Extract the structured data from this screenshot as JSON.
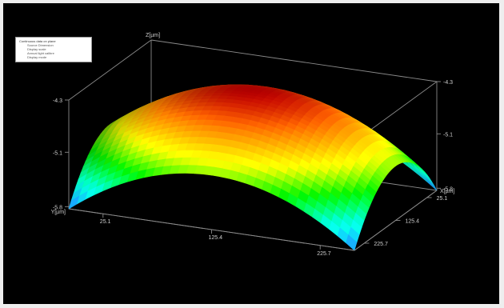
{
  "chart_data": {
    "type": "surface",
    "title": "",
    "axes": {
      "x": {
        "label": "X[µm]",
        "ticks": [
          "25.1",
          "125.4",
          "225.7"
        ]
      },
      "y": {
        "label": "Y[µm]",
        "ticks": [
          "25.1",
          "125.4",
          "225.7"
        ]
      },
      "z": {
        "label": "Z[µm]",
        "ticks": [
          "-4.3",
          "-5.1",
          "-5.8"
        ],
        "range": [
          -5.8,
          -4.3
        ]
      }
    },
    "colormap": [
      "#1e7cff",
      "#00ffd0",
      "#00e000",
      "#f0f000",
      "#ff8000",
      "#b00000"
    ],
    "surface": {
      "shape": "dome",
      "z_center": -4.3,
      "z_corner": -5.8
    },
    "legend": {
      "placement": "top-left",
      "title": "Continuous data on plane",
      "items": [
        "Source Dimension",
        "Display scale",
        "Annual light calibre",
        "Display mode"
      ]
    }
  }
}
